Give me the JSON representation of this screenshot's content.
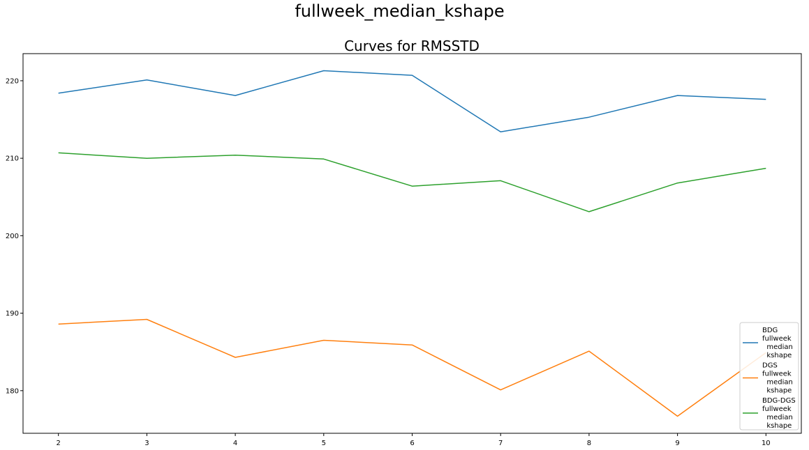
{
  "suptitle": "fullweek_median_kshape",
  "chart_data": {
    "type": "line",
    "title": "Curves for RMSSTD",
    "xlabel": "",
    "ylabel": "",
    "x": [
      2,
      3,
      4,
      5,
      6,
      7,
      8,
      9,
      10
    ],
    "xlim": [
      1.6,
      10.4
    ],
    "ylim": [
      174.5,
      223.5
    ],
    "xticks": [
      "2",
      "3",
      "4",
      "5",
      "6",
      "7",
      "8",
      "9",
      "10"
    ],
    "yticks": [
      "180",
      "190",
      "200",
      "210",
      "220"
    ],
    "grid": false,
    "legend_position": "lower-right",
    "series": [
      {
        "name": "BDG\nfullweek\n  median\n  kshape",
        "color": "#1f77b4",
        "values": [
          218.4,
          220.1,
          218.1,
          221.3,
          220.7,
          213.4,
          215.3,
          218.1,
          217.6
        ]
      },
      {
        "name": "DGS\nfullweek\n  median\n  kshape",
        "color": "#ff7f0e",
        "values": [
          188.6,
          189.2,
          184.3,
          186.5,
          185.9,
          180.1,
          185.1,
          176.7,
          184.9
        ]
      },
      {
        "name": "BDG-DGS\nfullweek\n  median\n  kshape",
        "color": "#2ca02c",
        "values": [
          210.7,
          210.0,
          210.4,
          209.9,
          206.4,
          207.1,
          203.1,
          206.8,
          208.7
        ]
      }
    ]
  }
}
